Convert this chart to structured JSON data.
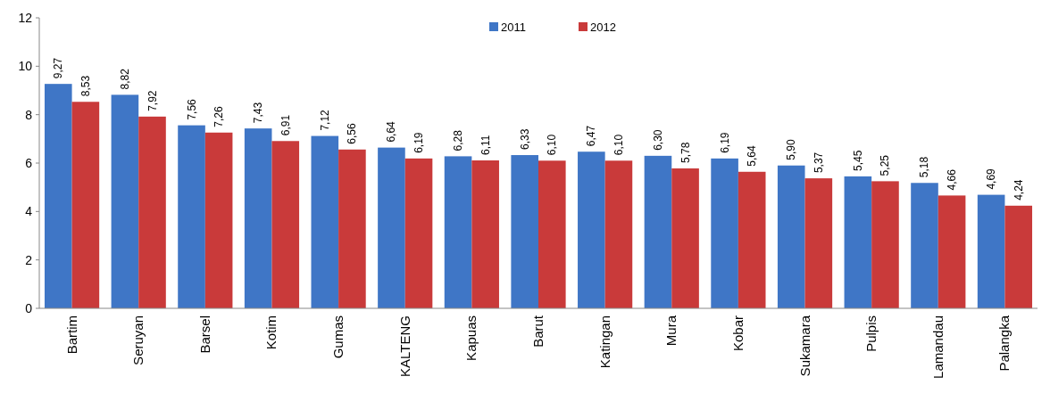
{
  "chart_data": {
    "type": "bar",
    "categories": [
      "Bartim",
      "Seruyan",
      "Barsel",
      "Kotim",
      "Gumas",
      "KALTENG",
      "Kapuas",
      "Barut",
      "Katingan",
      "Mura",
      "Kobar",
      "Sukamara",
      "Pulpis",
      "Lamandau",
      "Palangka"
    ],
    "series": [
      {
        "name": "2011",
        "color": "#3f76c6",
        "values": [
          9.27,
          8.82,
          7.56,
          7.43,
          7.12,
          6.64,
          6.28,
          6.33,
          6.47,
          6.3,
          6.19,
          5.9,
          5.45,
          5.18,
          4.69
        ],
        "value_labels": [
          "9,27",
          "8,82",
          "7,56",
          "7,43",
          "7,12",
          "6,64",
          "6,28",
          "6,33",
          "6,47",
          "6,30",
          "6,19",
          "5,90",
          "5,45",
          "5,18",
          "4,69"
        ]
      },
      {
        "name": "2012",
        "color": "#c93a3a",
        "values": [
          8.53,
          7.92,
          7.26,
          6.91,
          6.56,
          6.19,
          6.11,
          6.1,
          6.1,
          5.78,
          5.64,
          5.37,
          5.25,
          4.66,
          4.24
        ],
        "value_labels": [
          "8,53",
          "7,92",
          "7,26",
          "6,91",
          "6,56",
          "6,19",
          "6,11",
          "6,10",
          "6,10",
          "5,78",
          "5,64",
          "5,37",
          "5,25",
          "4,66",
          "4,24"
        ]
      }
    ],
    "ylim": [
      0,
      12
    ],
    "yticks": [
      0,
      2,
      4,
      6,
      8,
      10,
      12
    ],
    "legend": "top",
    "grid": false
  }
}
